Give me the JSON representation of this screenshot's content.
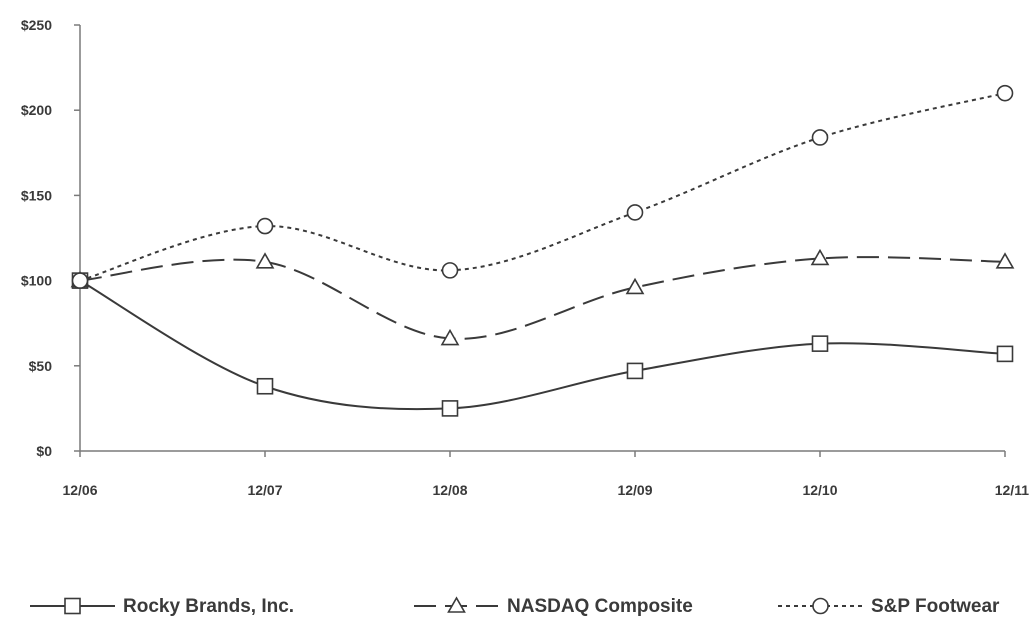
{
  "chart_data": {
    "type": "line",
    "title": "",
    "xlabel": "",
    "ylabel": "",
    "categories": [
      "12/06",
      "12/07",
      "12/08",
      "12/09",
      "12/10",
      "12/11"
    ],
    "ylim": [
      0,
      250
    ],
    "yticks": [
      0,
      50,
      100,
      150,
      200,
      250
    ],
    "ytick_labels": [
      "$0",
      "$50",
      "$100",
      "$150",
      "$200",
      "$250"
    ],
    "grid": false,
    "legend_position": "bottom",
    "series": [
      {
        "name": "Rocky Brands, Inc.",
        "values": [
          100,
          38,
          25,
          47,
          63,
          57
        ],
        "marker": "square",
        "line_style": "solid",
        "color": "#3a3a3a"
      },
      {
        "name": "NASDAQ Composite",
        "values": [
          100,
          111,
          66,
          96,
          113,
          111
        ],
        "marker": "triangle",
        "line_style": "dashed",
        "color": "#3a3a3a"
      },
      {
        "name": "S&P Footwear",
        "values": [
          100,
          132,
          106,
          140,
          184,
          210
        ],
        "marker": "circle",
        "line_style": "dotted",
        "color": "#3a3a3a"
      }
    ]
  }
}
